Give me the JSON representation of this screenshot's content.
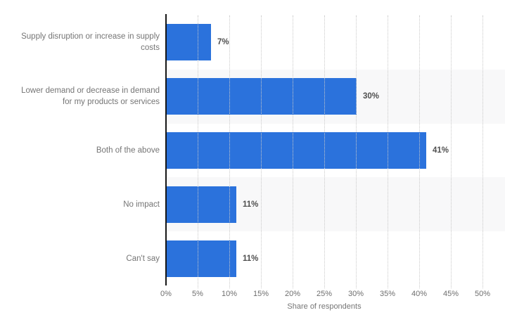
{
  "chart_data": {
    "type": "bar",
    "orientation": "horizontal",
    "categories": [
      "Supply disruption or increase in supply costs",
      "Lower demand or decrease in demand for my products or services",
      "Both of the above",
      "No impact",
      "Can't say"
    ],
    "values": [
      7,
      30,
      41,
      11,
      11
    ],
    "value_labels": [
      "7%",
      "30%",
      "41%",
      "11%",
      "11%"
    ],
    "xlabel": "Share of respondents",
    "x_ticks": [
      "0%",
      "5%",
      "10%",
      "15%",
      "20%",
      "25%",
      "30%",
      "35%",
      "40%",
      "45%",
      "50%"
    ],
    "xlim": [
      0,
      50
    ],
    "x_tick_step": 5,
    "grid": "dotted-vertical",
    "legend": "none",
    "title": "",
    "bar_color": "#2b72dc",
    "band_color": "#f8f8f9",
    "alternating_row_bands": true,
    "axis_line_color": "#161616",
    "label_color": "#757575",
    "value_label_color": "#4f4f4f",
    "tick_label_color": "#6e6e6e"
  }
}
